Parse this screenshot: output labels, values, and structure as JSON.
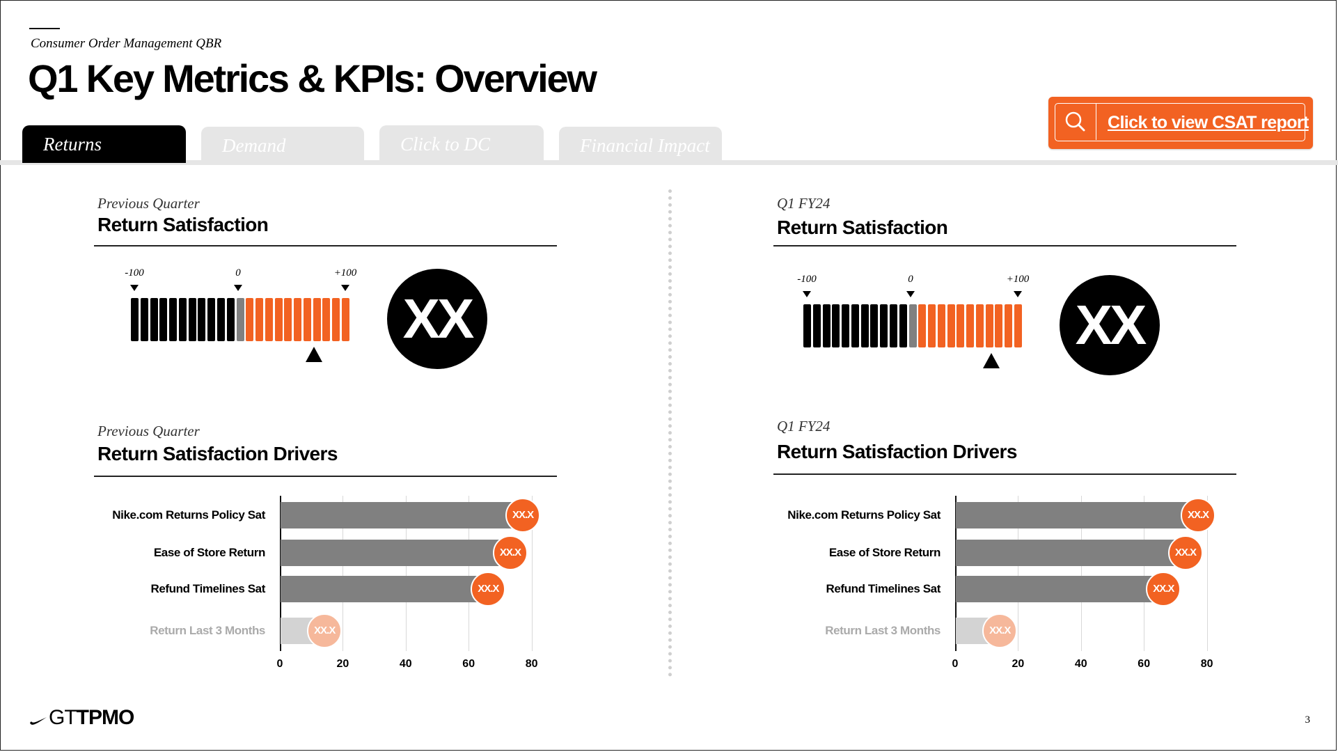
{
  "header": {
    "subtitle": "Consumer Order Management QBR",
    "title": "Q1 Key Metrics & KPIs: Overview"
  },
  "tabs": [
    {
      "label": "Returns",
      "active": true
    },
    {
      "label": "Demand",
      "active": false
    },
    {
      "label": "Click to DC",
      "active": false
    },
    {
      "label": "Financial Impact",
      "active": false
    }
  ],
  "csat_button": {
    "label": "Click to view CSAT report",
    "icon": "search-icon",
    "color": "#f26222"
  },
  "colors": {
    "accent": "#f26222",
    "neutral": "#808080",
    "gauge_negative": "#000000",
    "gauge_zero": "#808080"
  },
  "panels": [
    {
      "period": "Previous Quarter",
      "gauge": {
        "title": "Return Satisfaction",
        "labels": {
          "min": "-100",
          "zero": "0",
          "max": "+100"
        },
        "segments_negative": 11,
        "segments_positive": 11,
        "pointer_value": 70,
        "score": "XX"
      },
      "drivers": {
        "title": "Return Satisfaction Drivers",
        "axis_ticks": [
          "0",
          "20",
          "40",
          "60",
          "80"
        ],
        "items": [
          {
            "label": "Nike.com Returns Policy Sat",
            "value": 77,
            "badge": "XX.X",
            "muted": false
          },
          {
            "label": "Ease of Store Return",
            "value": 73,
            "badge": "XX.X",
            "muted": false
          },
          {
            "label": "Refund Timelines Sat",
            "value": 66,
            "badge": "XX.X",
            "muted": false
          },
          {
            "label": "Return Last 3 Months",
            "value": 14,
            "badge": "XX.X",
            "muted": true
          }
        ]
      }
    },
    {
      "period": "Q1 FY24",
      "gauge": {
        "title": "Return Satisfaction",
        "labels": {
          "min": "-100",
          "zero": "0",
          "max": "+100"
        },
        "segments_negative": 11,
        "segments_positive": 11,
        "pointer_value": 75,
        "score": "XX"
      },
      "drivers": {
        "title": "Return Satisfaction Drivers",
        "axis_ticks": [
          "0",
          "20",
          "40",
          "60",
          "80"
        ],
        "items": [
          {
            "label": "Nike.com Returns Policy Sat",
            "value": 77,
            "badge": "XX.X",
            "muted": false
          },
          {
            "label": "Ease of Store Return",
            "value": 73,
            "badge": "XX.X",
            "muted": false
          },
          {
            "label": "Refund Timelines Sat",
            "value": 66,
            "badge": "XX.X",
            "muted": false
          },
          {
            "label": "Return Last 3 Months",
            "value": 14,
            "badge": "XX.X",
            "muted": true
          }
        ]
      }
    }
  ],
  "footer": {
    "brand_left": "GT",
    "brand_right": "TPMO",
    "page_number": "3"
  }
}
